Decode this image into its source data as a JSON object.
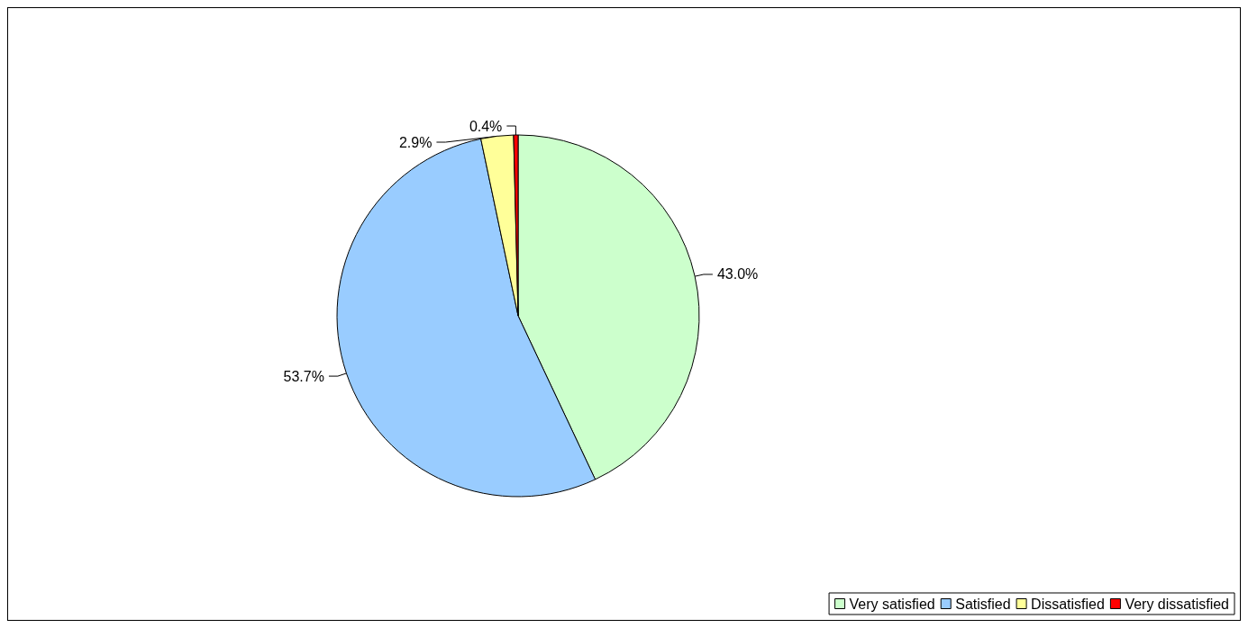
{
  "chart_data": {
    "type": "pie",
    "categories": [
      "Very satisfied",
      "Satisfied",
      "Dissatisfied",
      "Very dissatisfied"
    ],
    "values": [
      43.0,
      53.7,
      2.9,
      0.4
    ],
    "colors": [
      "#ccffcc",
      "#99ccff",
      "#ffff99",
      "#ff0000"
    ],
    "value_labels": [
      "43.0%",
      "53.7%",
      "2.9%",
      "0.4%"
    ],
    "legend": "bottom right"
  }
}
